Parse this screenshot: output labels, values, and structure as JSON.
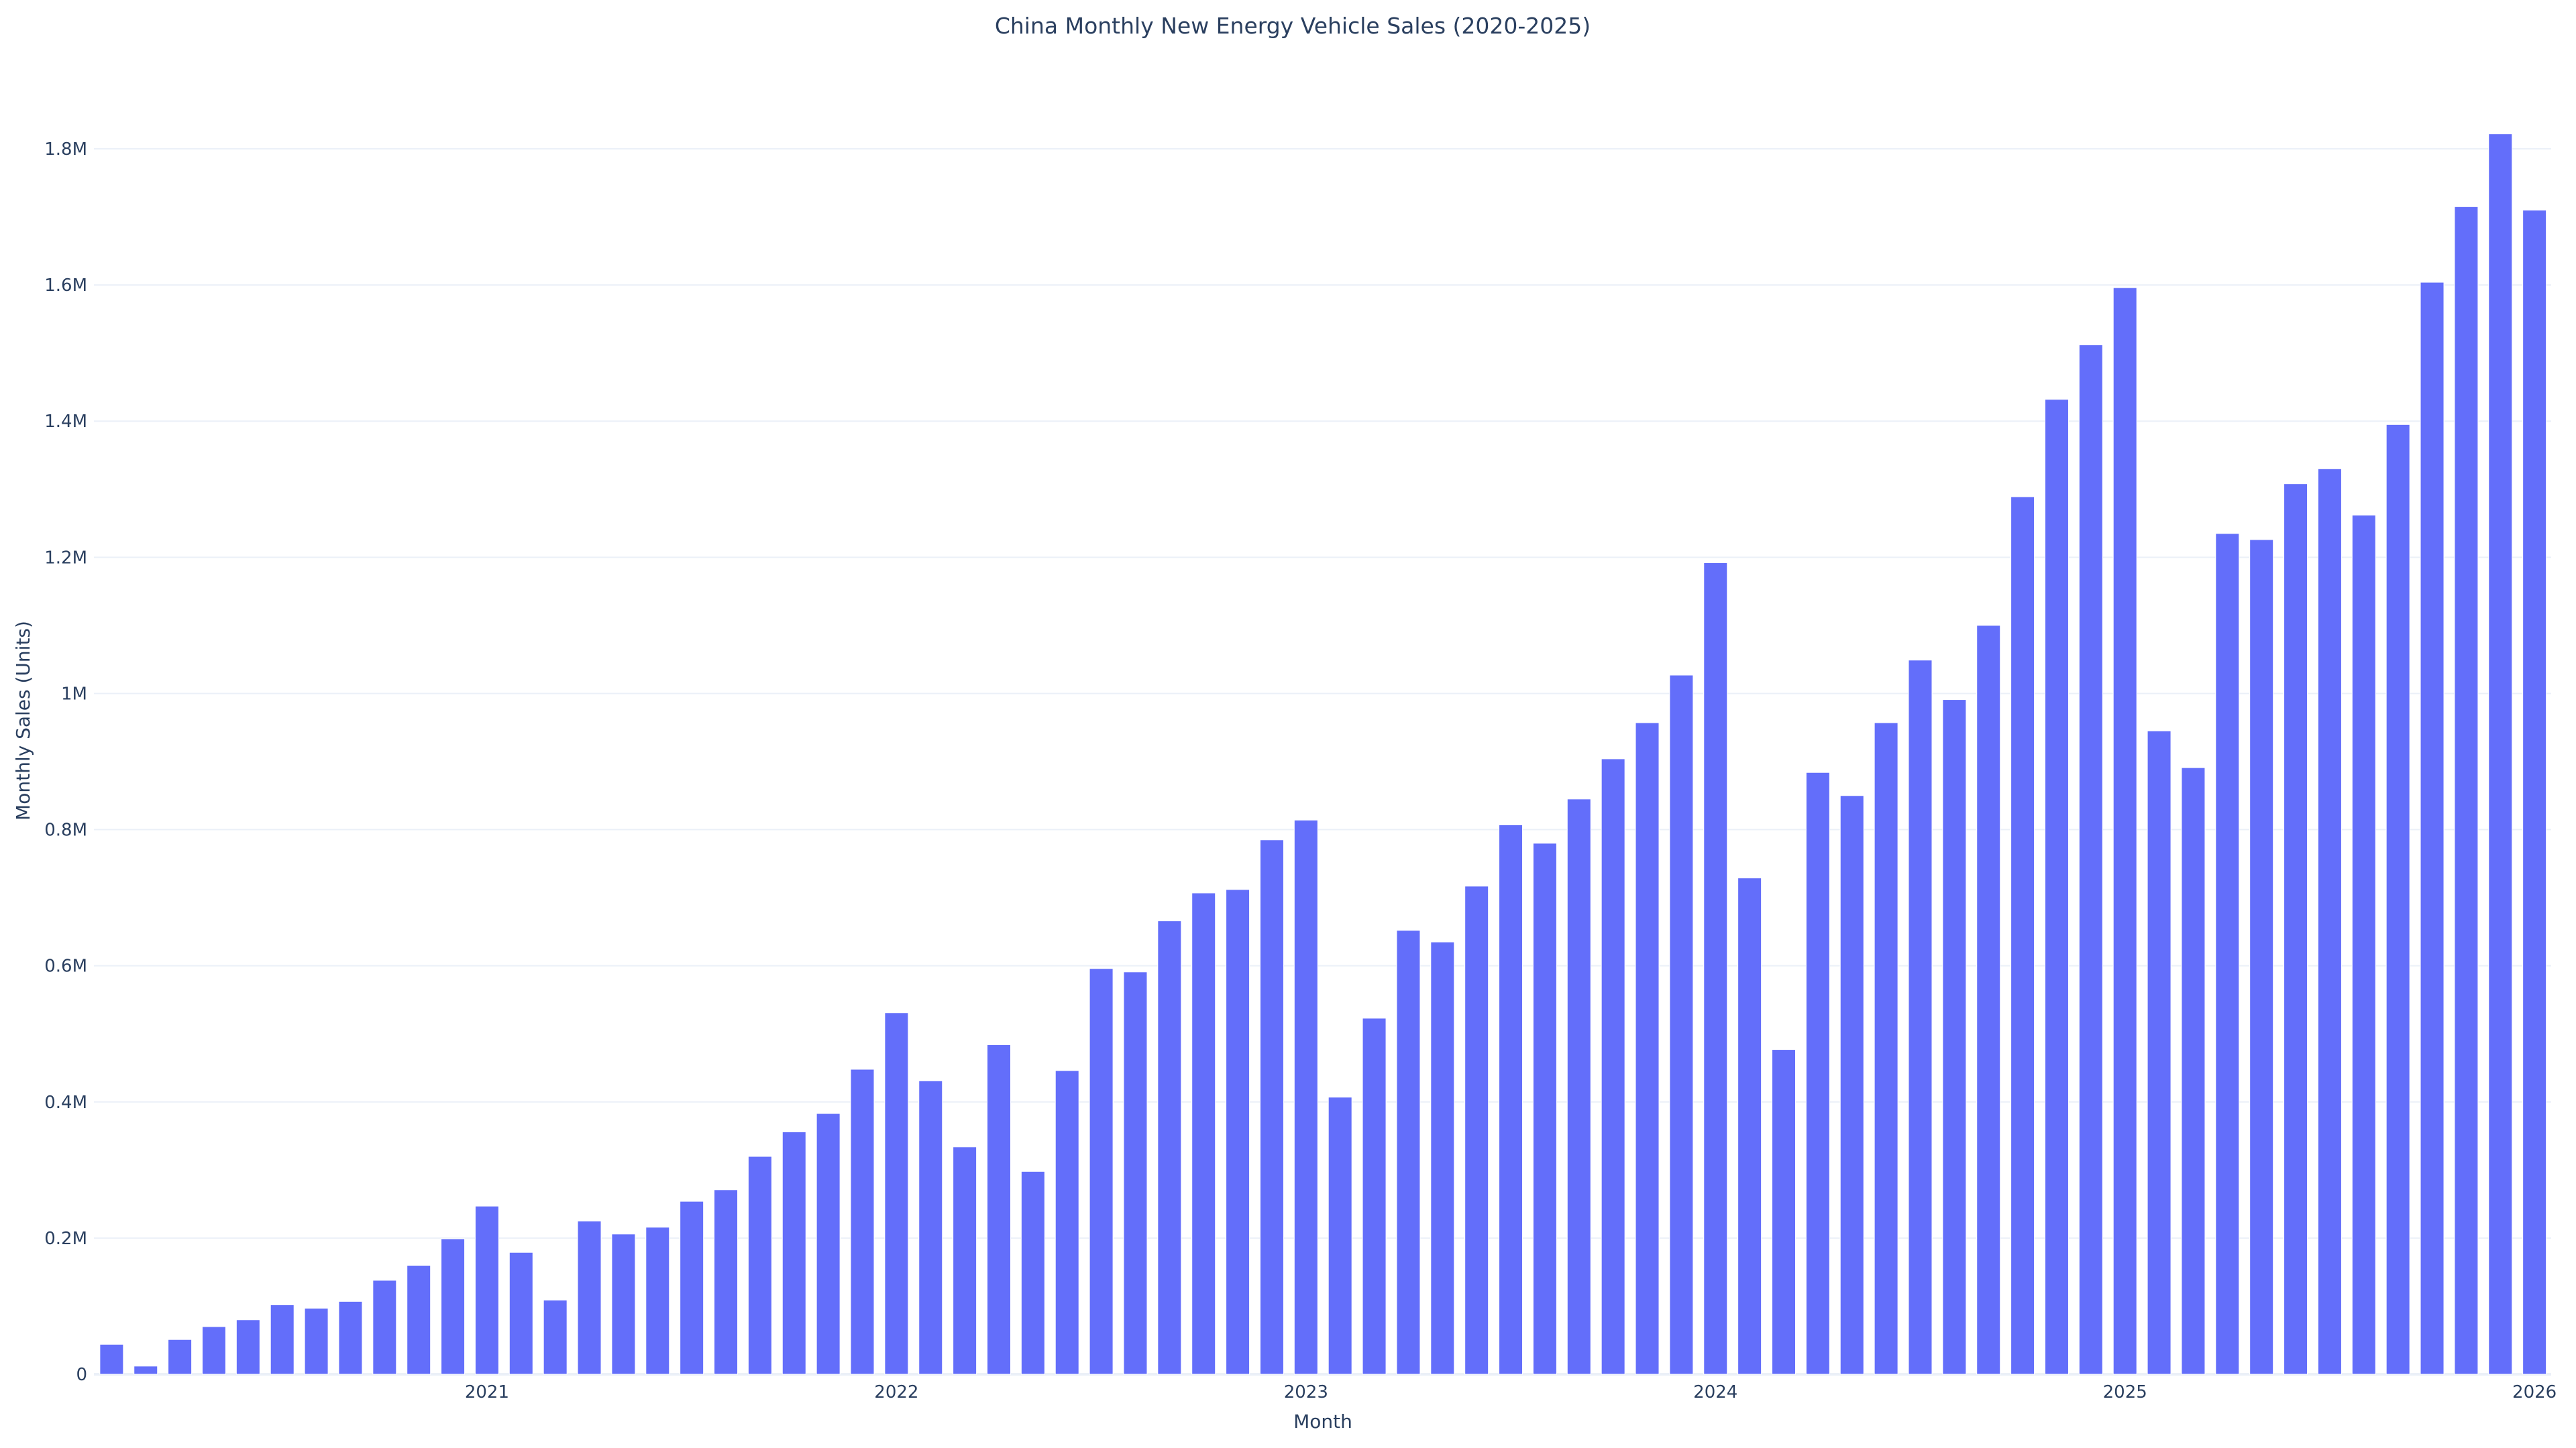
{
  "chart_data": {
    "type": "bar",
    "title": "China Monthly New Energy Vehicle Sales (2020-2025)",
    "xlabel": "Month",
    "ylabel": "Monthly Sales (Units)",
    "ylim": [
      0,
      1900000
    ],
    "grid": true,
    "legend": "none",
    "bar_color": "#636efa",
    "y_ticks": [
      {
        "value": 0,
        "label": "0"
      },
      {
        "value": 200000,
        "label": "0.2M"
      },
      {
        "value": 400000,
        "label": "0.4M"
      },
      {
        "value": 600000,
        "label": "0.6M"
      },
      {
        "value": 800000,
        "label": "0.8M"
      },
      {
        "value": 1000000,
        "label": "1M"
      },
      {
        "value": 1200000,
        "label": "1.2M"
      },
      {
        "value": 1400000,
        "label": "1.4M"
      },
      {
        "value": 1600000,
        "label": "1.6M"
      },
      {
        "value": 1800000,
        "label": "1.8M"
      }
    ],
    "x_ticks": [
      {
        "month_index": 11,
        "label": "2021"
      },
      {
        "month_index": 23,
        "label": "2022"
      },
      {
        "month_index": 35,
        "label": "2023"
      },
      {
        "month_index": 47,
        "label": "2024"
      },
      {
        "month_index": 59,
        "label": "2025"
      },
      {
        "month_index": 71,
        "label": "2026"
      }
    ],
    "start_month": "2020-01",
    "values": [
      44000,
      12000,
      51000,
      70000,
      80000,
      102000,
      97000,
      107000,
      138000,
      160000,
      199000,
      247000,
      179000,
      109000,
      225000,
      206000,
      216000,
      254000,
      271000,
      320000,
      356000,
      383000,
      448000,
      531000,
      431000,
      334000,
      484000,
      298000,
      446000,
      596000,
      591000,
      666000,
      707000,
      712000,
      785000,
      814000,
      407000,
      523000,
      652000,
      635000,
      717000,
      807000,
      780000,
      845000,
      904000,
      957000,
      1027000,
      1192000,
      729000,
      477000,
      884000,
      850000,
      957000,
      1049000,
      991000,
      1100000,
      1289000,
      1432000,
      1512000,
      1596000,
      945000,
      891000,
      1235000,
      1226000,
      1308000,
      1330000,
      1262000,
      1395000,
      1604000,
      1715000,
      1822000,
      1710000
    ]
  }
}
